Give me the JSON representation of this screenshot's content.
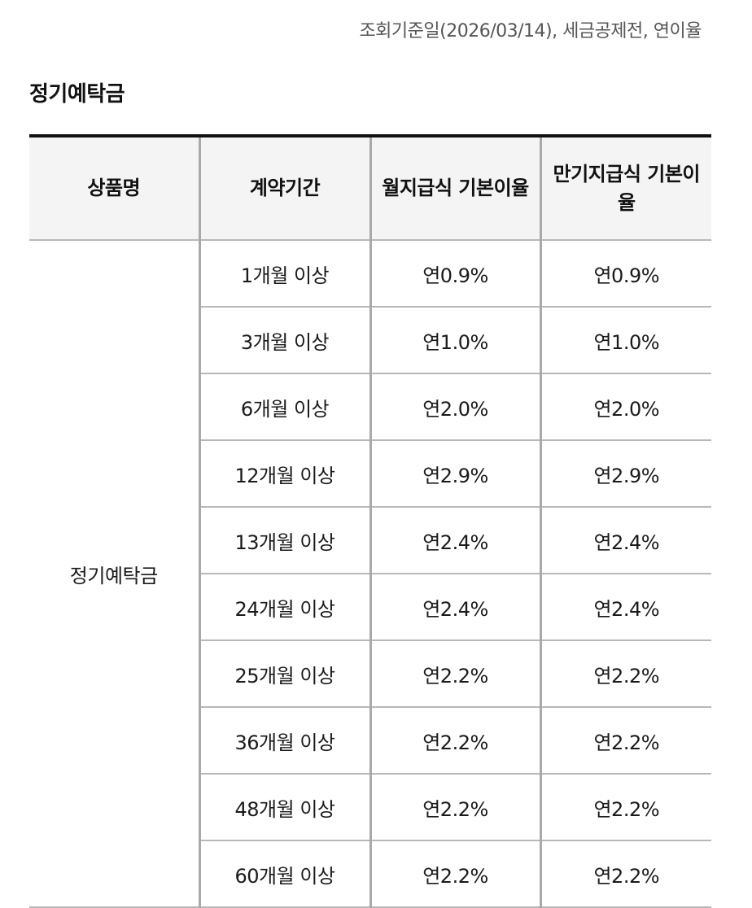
{
  "query_note": "조회기준일(2026/03/14), 세금공제전, 연이율",
  "section_title": "정기예탁금",
  "table": {
    "headers": [
      "상품명",
      "계약기간",
      "월지급식 기본이율",
      "만기지급식 기본이율"
    ],
    "product_name": "정기예탁금",
    "rows": [
      {
        "term": "1개월 이상",
        "monthly_rate": "연0.9%",
        "maturity_rate": "연0.9%"
      },
      {
        "term": "3개월 이상",
        "monthly_rate": "연1.0%",
        "maturity_rate": "연1.0%"
      },
      {
        "term": "6개월 이상",
        "monthly_rate": "연2.0%",
        "maturity_rate": "연2.0%"
      },
      {
        "term": "12개월 이상",
        "monthly_rate": "연2.9%",
        "maturity_rate": "연2.9%"
      },
      {
        "term": "13개월 이상",
        "monthly_rate": "연2.4%",
        "maturity_rate": "연2.4%"
      },
      {
        "term": "24개월 이상",
        "monthly_rate": "연2.4%",
        "maturity_rate": "연2.4%"
      },
      {
        "term": "25개월 이상",
        "monthly_rate": "연2.2%",
        "maturity_rate": "연2.2%"
      },
      {
        "term": "36개월 이상",
        "monthly_rate": "연2.2%",
        "maturity_rate": "연2.2%"
      },
      {
        "term": "48개월 이상",
        "monthly_rate": "연2.2%",
        "maturity_rate": "연2.2%"
      },
      {
        "term": "60개월 이상",
        "monthly_rate": "연2.2%",
        "maturity_rate": "연2.2%"
      }
    ]
  }
}
